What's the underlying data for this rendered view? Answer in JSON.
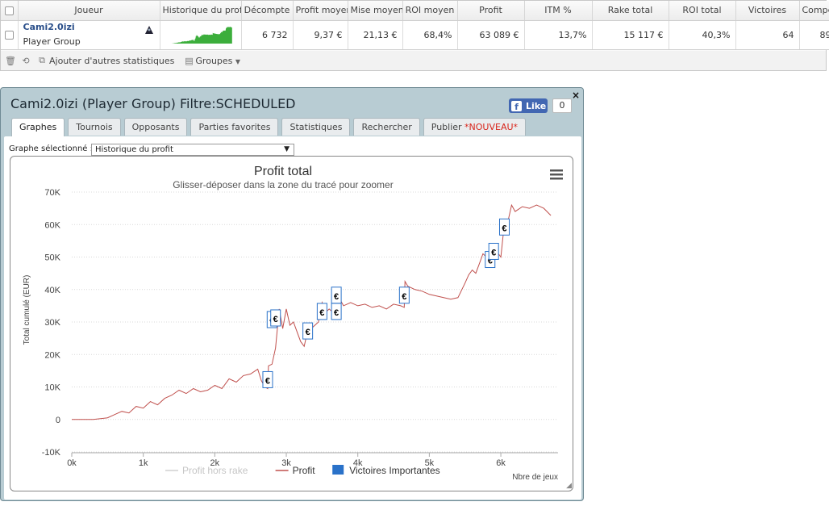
{
  "stats_table": {
    "headers": [
      "Joueur",
      "Historique du prof",
      "Décompte",
      "Profit moyen",
      "Mise moyenne",
      "ROI moyen",
      "Profit",
      "ITM %",
      "Rake total",
      "ROI total",
      "Victoires",
      "Compét"
    ],
    "row": {
      "player_name": "Cami2.0izi",
      "player_group": "Player Group",
      "decompte": "6 732",
      "profit_moyen": "9,37 €",
      "mise_moyenne": "21,13 €",
      "roi_moyen": "68,4%",
      "profit": "63 089 €",
      "itm": "13,7%",
      "rake_total": "15 117 €",
      "roi_total": "40,3%",
      "victoires": "64",
      "competitions": "89",
      "remove_link": "x"
    }
  },
  "toolbar": {
    "add_stats": "Ajouter d'autres statistiques",
    "groups": "Groupes"
  },
  "popup": {
    "title": "Cami2.0izi (Player Group) Filtre:SCHEDULED",
    "like_label": "Like",
    "like_count": "0",
    "close": "×",
    "tabs": [
      "Graphes",
      "Tournois",
      "Opposants",
      "Parties favorites",
      "Statistiques",
      "Rechercher",
      "Publier"
    ],
    "tab_new_badge": "*NOUVEAU*",
    "graph_select_label": "Graphe sélectionné :",
    "graph_select_value": "Historique du profit"
  },
  "colors": {
    "profit_line": "#c0504d",
    "rake_line": "#d0d0d0",
    "victory_marker": "#2a72c9",
    "sparkline": "#3cae3c",
    "accent_name": "#2a4f8a"
  },
  "chart_data": {
    "type": "line",
    "title": "Profit total",
    "subtitle": "Glisser-déposer dans la zone du tracé pour zoomer",
    "xlabel": "Nbre de jeux",
    "ylabel": "Total cumulé (EUR)",
    "xlim": [
      0,
      6800
    ],
    "ylim": [
      -10000,
      70000
    ],
    "x_ticks": [
      0,
      1000,
      2000,
      3000,
      4000,
      5000,
      6000
    ],
    "x_tick_labels": [
      "0k",
      "1k",
      "2k",
      "3k",
      "4k",
      "5k",
      "6k"
    ],
    "y_ticks": [
      -10000,
      0,
      10000,
      20000,
      30000,
      40000,
      50000,
      60000,
      70000
    ],
    "y_tick_labels": [
      "-10K",
      "0",
      "10K",
      "20K",
      "30K",
      "40K",
      "50K",
      "60K",
      "70K"
    ],
    "legend": [
      "Profit hors rake",
      "Profit",
      "Victoires Importantes"
    ],
    "legend_position": "bottom-center",
    "series": [
      {
        "name": "Profit",
        "x": [
          0,
          300,
          500,
          600,
          700,
          800,
          900,
          1000,
          1100,
          1200,
          1300,
          1400,
          1500,
          1600,
          1700,
          1800,
          1900,
          2000,
          2100,
          2200,
          2300,
          2400,
          2500,
          2600,
          2650,
          2700,
          2740,
          2750,
          2800,
          2850,
          2900,
          2950,
          3000,
          3050,
          3100,
          3150,
          3200,
          3250,
          3300,
          3350,
          3400,
          3450,
          3500,
          3550,
          3600,
          3650,
          3700,
          3750,
          3800,
          3900,
          4000,
          4100,
          4200,
          4300,
          4400,
          4500,
          4600,
          4650,
          4660,
          4700,
          4800,
          4900,
          5000,
          5100,
          5200,
          5300,
          5400,
          5500,
          5550,
          5600,
          5650,
          5700,
          5750,
          5800,
          5850,
          5860,
          5900,
          5950,
          6000,
          6050,
          6100,
          6150,
          6200,
          6300,
          6400,
          6500,
          6600,
          6700
        ],
        "y": [
          0,
          0,
          500,
          1500,
          2500,
          2000,
          4000,
          3500,
          5500,
          4500,
          6500,
          7500,
          9000,
          8000,
          9500,
          8500,
          9000,
          10500,
          9500,
          12500,
          11500,
          13500,
          14000,
          15500,
          12000,
          10000,
          9500,
          16500,
          17000,
          22000,
          34000,
          28000,
          34000,
          29000,
          30000,
          27000,
          24000,
          22500,
          27500,
          28000,
          29000,
          30000,
          36000,
          33000,
          34000,
          33000,
          36000,
          37000,
          35000,
          36000,
          35000,
          35500,
          34500,
          35000,
          34000,
          35500,
          35000,
          34500,
          42500,
          41000,
          40000,
          39500,
          38500,
          38000,
          37500,
          37000,
          37500,
          42000,
          44500,
          46000,
          45000,
          48000,
          51000,
          50000,
          52000,
          52500,
          50500,
          51500,
          50000,
          60500,
          61000,
          66000,
          64000,
          65500,
          65000,
          66000,
          65000,
          62800
        ]
      }
    ],
    "victoires_importantes": {
      "name": "Victoires Importantes",
      "x": [
        2740,
        2800,
        2850,
        3300,
        3500,
        3700,
        3700,
        4650,
        5850,
        5900,
        6050
      ],
      "y": [
        12000,
        30500,
        31000,
        27000,
        33000,
        38000,
        33000,
        38000,
        49000,
        51500,
        59000
      ]
    }
  }
}
